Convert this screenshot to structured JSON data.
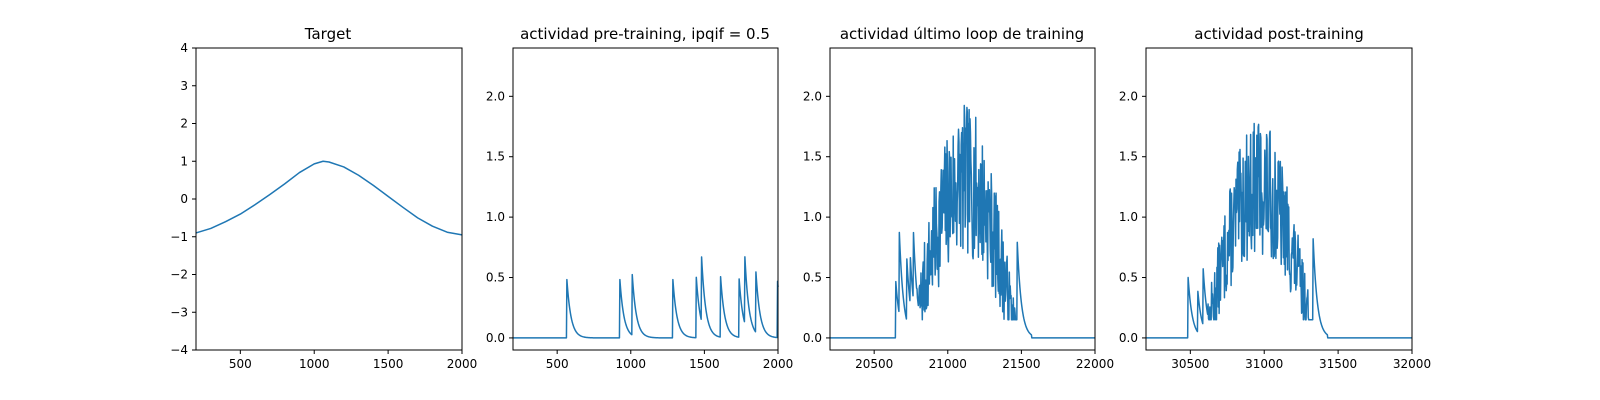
{
  "chart_data": [
    {
      "type": "line",
      "title": "Target",
      "xlim": [
        200,
        2000
      ],
      "ylim": [
        -4,
        4
      ],
      "xticks": [
        500,
        1000,
        1500,
        2000
      ],
      "yticks": [
        -4,
        -3,
        -2,
        -1,
        0,
        1,
        2,
        3,
        4
      ],
      "xticklabels": [
        "500",
        "1000",
        "1500",
        "2000"
      ],
      "yticklabels": [
        "−4",
        "−3",
        "−2",
        "−1",
        "0",
        "1",
        "2",
        "3",
        "4"
      ],
      "series": [
        {
          "color": "#1f77b4",
          "x": [
            200,
            300,
            400,
            500,
            600,
            700,
            800,
            900,
            1000,
            1060,
            1100,
            1200,
            1300,
            1400,
            1500,
            1600,
            1700,
            1800,
            1900,
            2000
          ],
          "y": [
            -0.9,
            -0.78,
            -0.6,
            -0.4,
            -0.15,
            0.12,
            0.4,
            0.7,
            0.93,
            1.0,
            0.98,
            0.85,
            0.63,
            0.36,
            0.07,
            -0.22,
            -0.5,
            -0.72,
            -0.88,
            -0.95
          ]
        }
      ]
    },
    {
      "type": "line",
      "title": "actividad pre-training, ipqif = 0.5",
      "xlim": [
        200,
        2000
      ],
      "ylim": [
        -0.1,
        2.4
      ],
      "xticks": [
        500,
        1000,
        1500,
        2000
      ],
      "yticks": [
        0,
        0.5,
        1,
        1.5,
        2
      ],
      "xticklabels": [
        "500",
        "1000",
        "1500",
        "2000"
      ],
      "yticklabels": [
        "0.0",
        "0.5",
        "1.0",
        "1.5",
        "2.0"
      ],
      "spikes": [
        {
          "t": 565,
          "h": 0.5
        },
        {
          "t": 925,
          "h": 0.5
        },
        {
          "t": 1010,
          "h": 0.5
        },
        {
          "t": 1285,
          "h": 0.5
        },
        {
          "t": 1445,
          "h": 0.5
        },
        {
          "t": 1480,
          "h": 0.55
        },
        {
          "t": 1610,
          "h": 0.5
        },
        {
          "t": 1735,
          "h": 0.5
        },
        {
          "t": 1775,
          "h": 0.55
        },
        {
          "t": 1850,
          "h": 0.5
        },
        {
          "t": 1995,
          "h": 0.5
        }
      ],
      "decay": 28
    },
    {
      "type": "line",
      "title": "actividad último loop de training",
      "xlim": [
        20200,
        22000
      ],
      "ylim": [
        -0.1,
        2.4
      ],
      "xticks": [
        20500,
        21000,
        21500,
        22000
      ],
      "yticks": [
        0,
        0.5,
        1,
        1.5,
        2
      ],
      "xticklabels": [
        "20500",
        "21000",
        "21500",
        "22000"
      ],
      "yticklabels": [
        "0.0",
        "0.5",
        "1.0",
        "1.5",
        "2.0"
      ],
      "spikes": [
        {
          "t": 20645,
          "h": 0.5
        },
        {
          "t": 20670,
          "h": 0.7
        },
        {
          "t": 20720,
          "h": 0.55
        },
        {
          "t": 20745,
          "h": 0.4
        },
        {
          "t": 20765,
          "h": 0.6
        }
      ],
      "decay": 28,
      "envelope": {
        "start": 20760,
        "peak": 21200,
        "end": 21470,
        "peak_value": 1.3
      },
      "noise": {
        "amp": 0.45,
        "max": 2.1,
        "seed": 7
      }
    },
    {
      "type": "line",
      "title": "actividad post-training",
      "xlim": [
        30200,
        32000
      ],
      "ylim": [
        -0.1,
        2.4
      ],
      "xticks": [
        30500,
        31000,
        31500,
        32000
      ],
      "yticks": [
        0,
        0.5,
        1,
        1.5,
        2
      ],
      "xticklabels": [
        "30500",
        "31000",
        "31500",
        "32000"
      ],
      "yticklabels": [
        "0.0",
        "0.5",
        "1.0",
        "1.5",
        "2.0"
      ],
      "spikes": [
        {
          "t": 30485,
          "h": 0.5
        },
        {
          "t": 30550,
          "h": 0.35
        },
        {
          "t": 30585,
          "h": 0.5
        }
      ],
      "decay": 28,
      "envelope": {
        "start": 30600,
        "peak": 31020,
        "end": 31330,
        "peak_value": 1.25
      },
      "noise": {
        "amp": 0.4,
        "max": 2.0,
        "seed": 13
      }
    }
  ]
}
